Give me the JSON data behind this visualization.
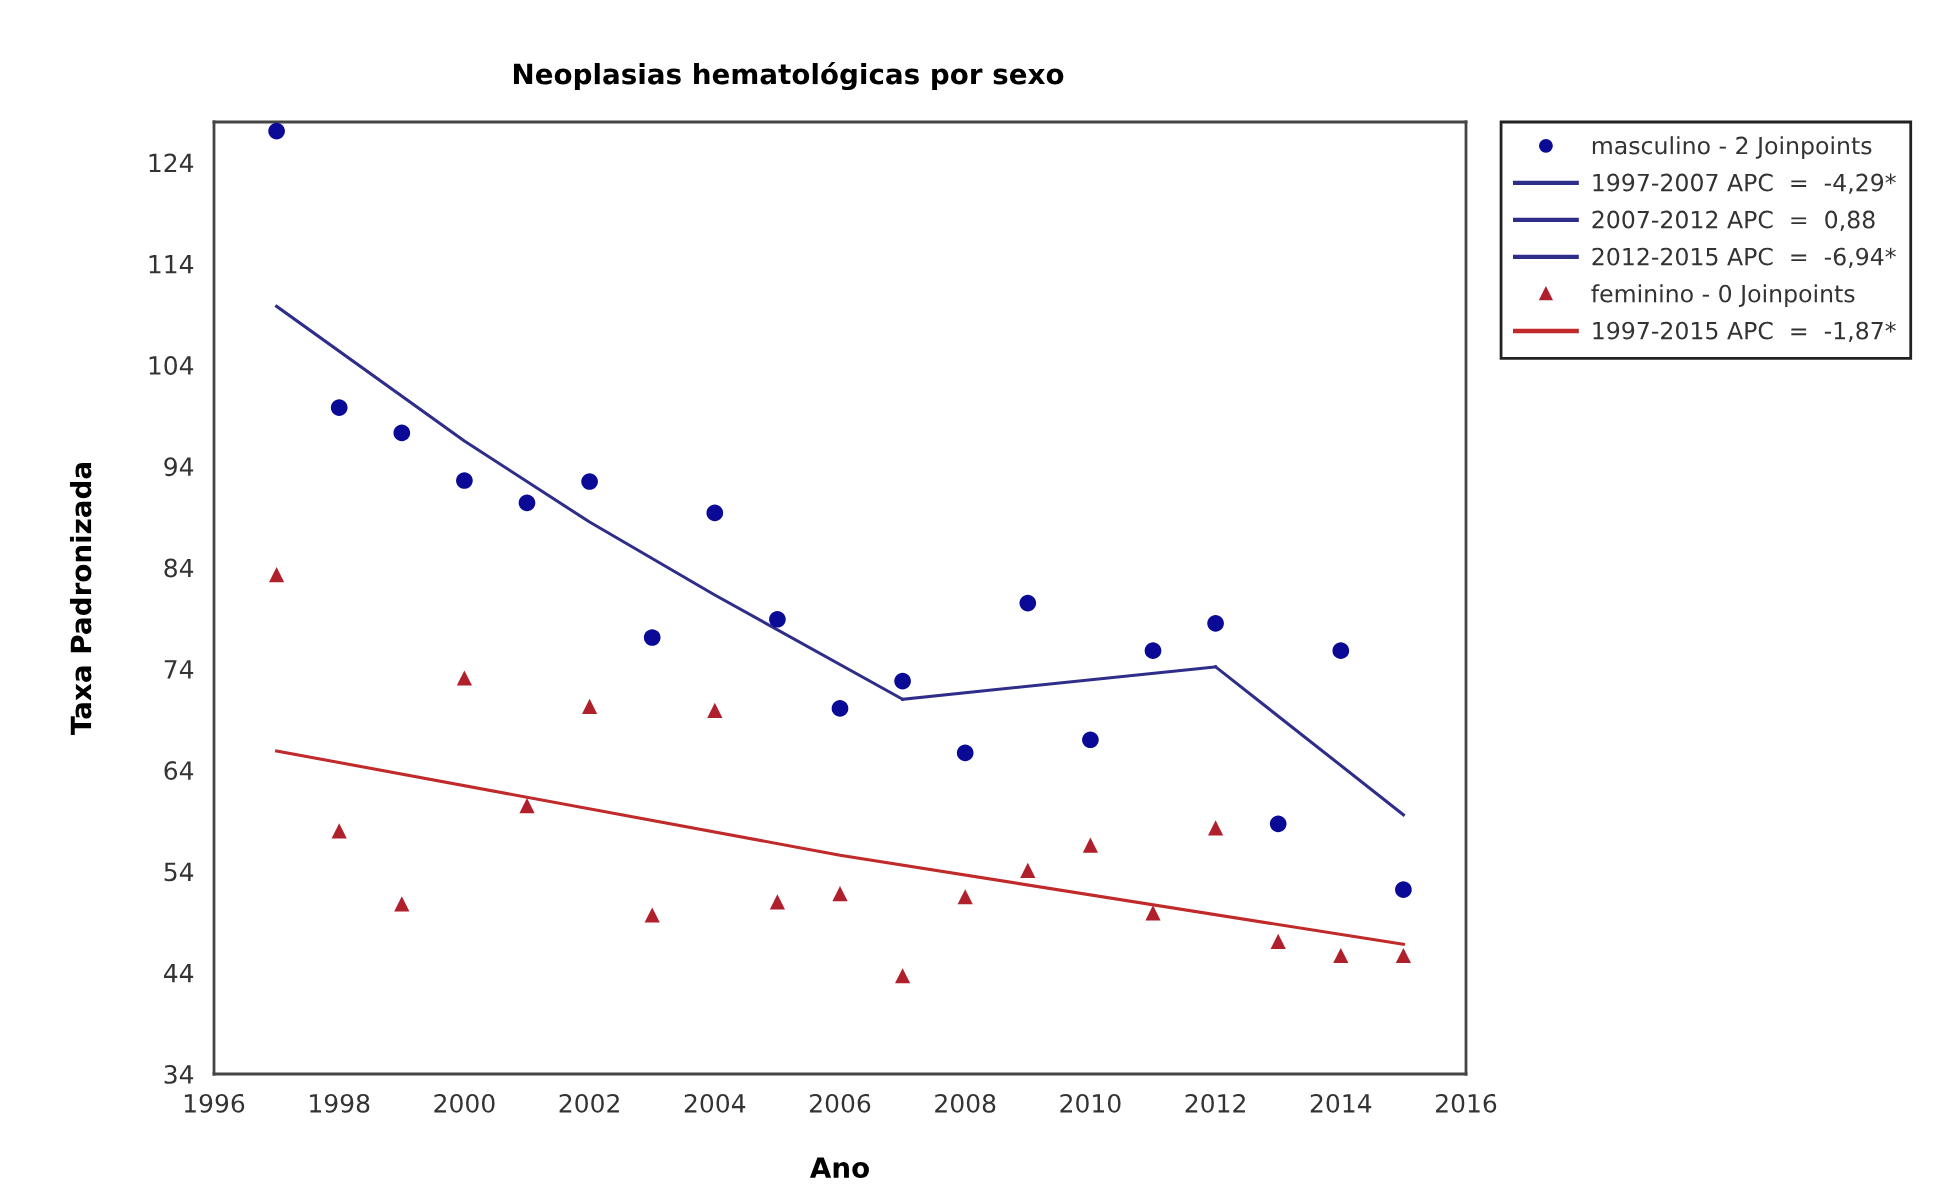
{
  "chart_data": {
    "type": "scatter",
    "title": "Neoplasias hematológicas por sexo",
    "xlabel": "Ano",
    "ylabel": "Taxa Padronizada",
    "xlim": [
      1996,
      2016
    ],
    "xticks": [
      1996,
      1998,
      2000,
      2002,
      2004,
      2006,
      2008,
      2010,
      2012,
      2014,
      2016
    ],
    "ylim": [
      34,
      128
    ],
    "yticks": [
      34,
      44,
      54,
      64,
      74,
      84,
      94,
      104,
      114,
      124
    ],
    "legend": "top right",
    "series": [
      {
        "name": "masculino - 2 Joinpoints",
        "marker": "circle",
        "color": "#0a0a96",
        "x": [
          1997,
          1998,
          1999,
          2000,
          2001,
          2002,
          2003,
          2004,
          2005,
          2006,
          2007,
          2008,
          2009,
          2010,
          2011,
          2012,
          2013,
          2014,
          2015
        ],
        "values": [
          127.1,
          99.8,
          97.3,
          92.6,
          90.4,
          92.5,
          77.1,
          89.4,
          78.9,
          70.1,
          72.8,
          65.7,
          80.5,
          67.0,
          75.8,
          78.5,
          58.7,
          75.8,
          52.2
        ]
      },
      {
        "name": "1997-2007 APC  =  -4,29*",
        "type": "line",
        "marker": "none",
        "color": "#2e2e8a",
        "x": [
          1997,
          2000,
          2002,
          2004,
          2007
        ],
        "values": [
          109.8,
          96.5,
          88.5,
          81.3,
          71.0
        ]
      },
      {
        "name": "2007-2012 APC  =  0,88",
        "type": "line",
        "marker": "none",
        "color": "#2e2e8a",
        "x": [
          2007,
          2012
        ],
        "values": [
          71.0,
          74.2
        ]
      },
      {
        "name": "2012-2015 APC  =  -6,94*",
        "type": "line",
        "marker": "none",
        "color": "#2e2e8a",
        "x": [
          2012,
          2015
        ],
        "values": [
          74.2,
          59.6
        ]
      },
      {
        "name": "feminino - 0 Joinpoints",
        "marker": "triangle",
        "color": "#b0202c",
        "x": [
          1997,
          1998,
          1999,
          2000,
          2001,
          2002,
          2003,
          2004,
          2005,
          2006,
          2007,
          2008,
          2009,
          2010,
          2011,
          2012,
          2013,
          2014,
          2015
        ],
        "values": [
          83.3,
          58.0,
          50.8,
          73.1,
          60.5,
          70.3,
          49.7,
          69.9,
          51.0,
          51.8,
          43.7,
          51.5,
          54.1,
          56.6,
          49.9,
          58.3,
          47.1,
          45.7,
          45.7
        ]
      },
      {
        "name": "1997-2015 APC  =  -1,87*",
        "type": "line",
        "marker": "none",
        "color": "#c02a2a",
        "x": [
          1997,
          2006,
          2015
        ],
        "values": [
          65.9,
          55.6,
          46.8
        ]
      }
    ]
  }
}
